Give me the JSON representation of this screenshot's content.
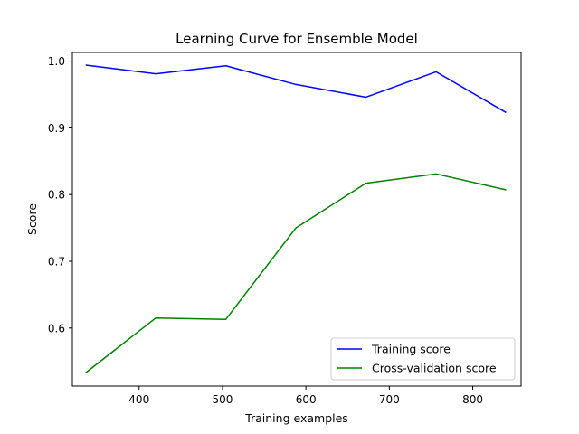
{
  "chart_data": {
    "type": "line",
    "title": "Learning Curve for Ensemble Model",
    "xlabel": "Training examples",
    "ylabel": "Score",
    "x": [
      336,
      420,
      504,
      588,
      672,
      756,
      840
    ],
    "series": [
      {
        "name": "Training score",
        "color": "#0000ff",
        "values": [
          0.994,
          0.981,
          0.993,
          0.965,
          0.946,
          0.984,
          0.923
        ]
      },
      {
        "name": "Cross-validation score",
        "color": "#008000",
        "values": [
          0.533,
          0.615,
          0.613,
          0.75,
          0.817,
          0.831,
          0.807
        ]
      }
    ],
    "xlim": [
      320,
      858
    ],
    "ylim": [
      0.513,
      1.013
    ],
    "xticks": [
      {
        "value": 400,
        "label": "400"
      },
      {
        "value": 500,
        "label": "500"
      },
      {
        "value": 600,
        "label": "600"
      },
      {
        "value": 700,
        "label": "700"
      },
      {
        "value": 800,
        "label": "800"
      }
    ],
    "yticks": [
      {
        "value": 0.6,
        "label": "0.6"
      },
      {
        "value": 0.7,
        "label": "0.7"
      },
      {
        "value": 0.8,
        "label": "0.8"
      },
      {
        "value": 0.9,
        "label": "0.9"
      },
      {
        "value": 1.0,
        "label": "1.0"
      }
    ],
    "grid": false,
    "legend": "lower-right"
  }
}
